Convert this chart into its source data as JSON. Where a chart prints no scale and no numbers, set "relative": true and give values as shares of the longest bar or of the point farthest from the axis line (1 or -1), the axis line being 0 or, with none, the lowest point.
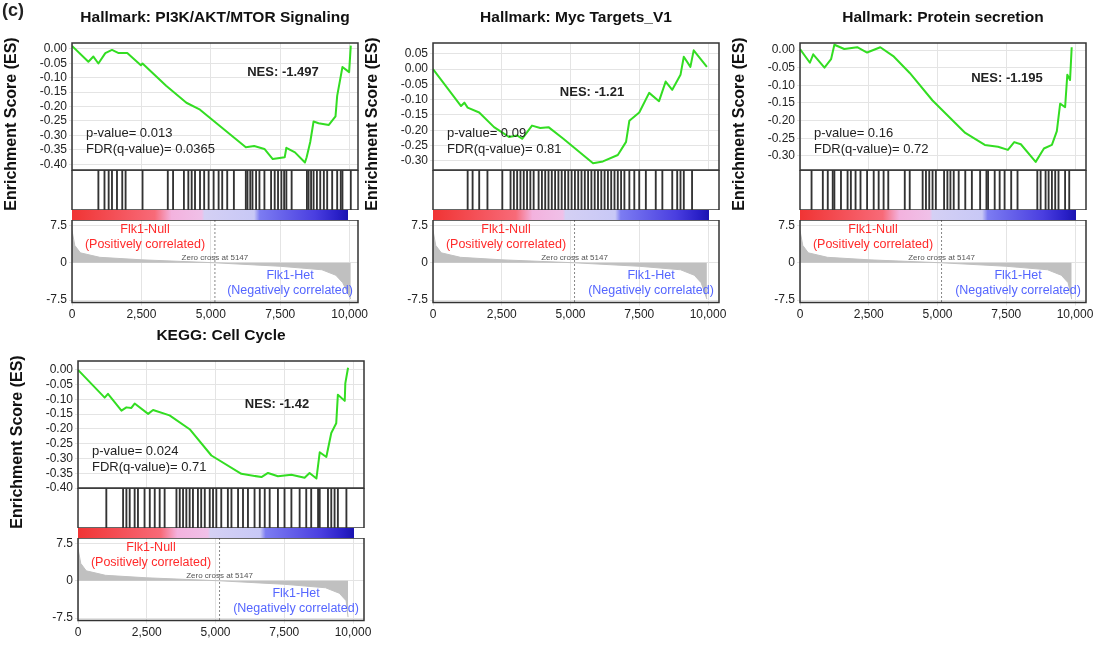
{
  "chart_data": [
    {
      "type": "line",
      "title": "Hallmark: PI3K/AKT/MTOR Signaling",
      "ylabel": "Enrichment Score (ES)",
      "xlim": [
        0,
        10300
      ],
      "xticks": [
        0,
        2500,
        5000,
        7500,
        10000
      ],
      "tick_labels": "y",
      "ylim": [
        -0.42,
        0.02
      ],
      "yticks": [
        {
          "value": 0,
          "label": "0.00"
        },
        {
          "value": -0.05,
          "label": "-0.05"
        },
        {
          "value": -0.1,
          "label": "-0.10"
        },
        {
          "value": -0.15,
          "label": "-0.15"
        },
        {
          "value": -0.2,
          "label": "-0.20"
        },
        {
          "value": -0.25,
          "label": "-0.25"
        },
        {
          "value": -0.3,
          "label": "-0.30"
        },
        {
          "value": -0.35,
          "label": "-0.35"
        },
        {
          "value": -0.4,
          "label": "-0.40"
        }
      ],
      "grid": true,
      "series": [
        {
          "color": "#33dd22",
          "x": [
            0,
            590,
            770,
            950,
            1200,
            1440,
            1680,
            1990,
            2480,
            2540,
            3390,
            4120,
            4610,
            6260,
            6560,
            6930,
            7230,
            7660,
            7720,
            8030,
            8390,
            8450,
            8580,
            8700,
            8880,
            9250,
            9490,
            9550,
            9740,
            9980,
            10040
          ],
          "values": [
            0.01,
            -0.045,
            -0.027,
            -0.051,
            -0.015,
            -0.004,
            -0.015,
            -0.015,
            -0.057,
            -0.051,
            -0.128,
            -0.187,
            -0.211,
            -0.341,
            -0.337,
            -0.347,
            -0.382,
            -0.376,
            -0.343,
            -0.359,
            -0.394,
            -0.376,
            -0.323,
            -0.252,
            -0.258,
            -0.264,
            -0.234,
            -0.163,
            -0.063,
            -0.081,
            0.011
          ]
        }
      ],
      "annotations": [
        "NES: -1.497",
        "p-value= 0.013",
        "FDR(q-value)= 0.0365",
        "(c)"
      ]
    },
    {
      "type": "bar",
      "relative": true,
      "tick_labels": false,
      "xlim": [
        0,
        10300
      ],
      "color": "#333333",
      "x": [
        950,
        1170,
        1320,
        1440,
        1620,
        1810,
        1930,
        2540,
        3450,
        3640,
        4030,
        4190,
        4310,
        4430,
        4610,
        4760,
        4920,
        5100,
        5280,
        5410,
        5590,
        5830,
        6260,
        6320,
        6420,
        6500,
        6630,
        6750,
        6930,
        7170,
        7300,
        7420,
        7540,
        7640,
        7720,
        7910,
        8460,
        8520,
        8610,
        8700,
        8820,
        8940,
        9070,
        9190,
        9370,
        9550,
        9680,
        9740,
        10040
      ],
      "values": [
        1,
        1,
        1,
        1,
        1,
        1,
        1,
        1,
        1,
        1,
        1,
        1,
        1,
        1,
        1,
        1,
        1,
        1,
        1,
        1,
        1,
        1,
        1,
        1,
        1,
        1,
        1,
        1,
        1,
        1,
        1,
        1,
        1,
        1,
        1,
        1,
        1,
        1,
        1,
        1,
        1,
        1,
        1,
        1,
        1,
        1,
        1,
        1,
        1
      ]
    },
    {
      "type": "area",
      "xlim": [
        0,
        10300
      ],
      "xticks": [
        0,
        {
          "value": 2500,
          "label": "2,500"
        },
        {
          "value": 5000,
          "label": "5,000"
        },
        {
          "value": 7500,
          "label": "7,500"
        },
        {
          "value": 10000,
          "label": "10,000"
        }
      ],
      "ylim": [
        -8,
        8.6
      ],
      "yticks": [
        7.5,
        0,
        -7.5
      ],
      "grid": true,
      "series": [
        {
          "color": "#c0c0c0",
          "x": [
            0,
            100,
            300,
            1000,
            2500,
            5147,
            7500,
            9000,
            9500,
            9750,
            10040
          ],
          "values": [
            6.5,
            3.5,
            2,
            1.1,
            0.6,
            0,
            -0.7,
            -1.4,
            -2.5,
            -4,
            -7.3
          ]
        }
      ],
      "ref_lines": [
        {
          "axis": "x",
          "value": 5147,
          "label": "Zero cross at 5147",
          "line_style": "dashed"
        }
      ],
      "annotations": [
        "Flk1-Null\n(Positively correlated)",
        "Flk1-Het\n(Negatively correlated)"
      ]
    },
    {
      "type": "line",
      "title": "Hallmark: Myc Targets_V1",
      "ylabel": "Enrichment Score (ES)",
      "xlim": [
        0,
        10400
      ],
      "xticks": [
        0,
        2500,
        5000,
        7500,
        10000
      ],
      "tick_labels": "y",
      "ylim": [
        -0.33,
        0.085
      ],
      "yticks": [
        {
          "value": 0.05,
          "label": "0.05"
        },
        {
          "value": 0,
          "label": "0.00"
        },
        {
          "value": -0.05,
          "label": "-0.05"
        },
        {
          "value": -0.1,
          "label": "-0.10"
        },
        {
          "value": -0.15,
          "label": "-0.15"
        },
        {
          "value": -0.2,
          "label": "-0.20"
        },
        {
          "value": -0.25,
          "label": "-0.25"
        },
        {
          "value": -0.3,
          "label": "-0.30"
        }
      ],
      "grid": true,
      "series": [
        {
          "color": "#33dd22",
          "x": [
            0,
            1020,
            1140,
            1260,
            1680,
            2220,
            2760,
            3060,
            3240,
            3600,
            3900,
            4200,
            4740,
            5820,
            6180,
            6720,
            7020,
            7140,
            7500,
            7860,
            8220,
            8460,
            8700,
            9000,
            9120,
            9360,
            9480,
            9960
          ],
          "values": [
            0,
            -0.121,
            -0.11,
            -0.126,
            -0.142,
            -0.19,
            -0.222,
            -0.217,
            -0.228,
            -0.185,
            -0.193,
            -0.19,
            -0.228,
            -0.308,
            -0.302,
            -0.281,
            -0.238,
            -0.169,
            -0.142,
            -0.078,
            -0.105,
            -0.041,
            -0.068,
            -0.019,
            0.04,
            0.007,
            0.061,
            0.007
          ]
        }
      ],
      "annotations": [
        "NES: -1.21",
        "p-value= 0.09",
        "FDR(q-value)= 0.81"
      ]
    },
    {
      "type": "bar",
      "relative": true,
      "tick_labels": false,
      "xlim": [
        0,
        10400
      ],
      "color": "#333333",
      "x": [
        1260,
        1440,
        1680,
        1980,
        2520,
        2820,
        2940,
        3060,
        3180,
        3300,
        3420,
        3540,
        3660,
        3840,
        3960,
        4080,
        4200,
        4320,
        4440,
        4560,
        4680,
        4800,
        4920,
        5040,
        5160,
        5280,
        5400,
        5520,
        5640,
        5760,
        5880,
        6000,
        6120,
        6240,
        6360,
        6480,
        6600,
        6720,
        6840,
        6960,
        7140,
        7320,
        7500,
        7740,
        8100,
        8340,
        8700,
        8880,
        9000,
        9120,
        9420
      ],
      "values": [
        1,
        1,
        1,
        1,
        1,
        1,
        1,
        1,
        1,
        1,
        1,
        1,
        1,
        1,
        1,
        1,
        1,
        1,
        1,
        1,
        1,
        1,
        1,
        1,
        1,
        1,
        1,
        1,
        1,
        1,
        1,
        1,
        1,
        1,
        1,
        1,
        1,
        1,
        1,
        1,
        1,
        1,
        1,
        1,
        1,
        1,
        1,
        1,
        1,
        1,
        1
      ]
    },
    {
      "type": "area",
      "xlim": [
        0,
        10400
      ],
      "xticks": [
        0,
        {
          "value": 2500,
          "label": "2,500"
        },
        {
          "value": 5000,
          "label": "5,000"
        },
        {
          "value": 7500,
          "label": "7,500"
        },
        {
          "value": 10000,
          "label": "10,000"
        }
      ],
      "ylim": [
        -8,
        8.6
      ],
      "yticks": [
        7.5,
        0,
        -7.5
      ],
      "grid": true,
      "series": [
        {
          "color": "#c0c0c0",
          "x": [
            0,
            100,
            300,
            1000,
            2500,
            5147,
            7500,
            9000,
            9500,
            9750,
            9960
          ],
          "values": [
            6.5,
            3.5,
            2,
            1.1,
            0.6,
            0,
            -0.7,
            -1.4,
            -2.5,
            -4,
            -7.3
          ]
        }
      ],
      "ref_lines": [
        {
          "axis": "x",
          "value": 5147,
          "label": "Zero cross at 5147",
          "line_style": "dashed"
        }
      ],
      "annotations": [
        "Flk1-Null\n(Positively correlated)",
        "Flk1-Het\n(Negatively correlated)"
      ]
    },
    {
      "type": "line",
      "title": "Hallmark: Protein secretion",
      "ylabel": "Enrichment Score (ES)",
      "xlim": [
        0,
        10400
      ],
      "xticks": [
        0,
        2500,
        5000,
        7500,
        10000
      ],
      "tick_labels": "y",
      "ylim": [
        -0.34,
        0.02
      ],
      "yticks": [
        {
          "value": 0,
          "label": "0.00"
        },
        {
          "value": -0.05,
          "label": "-0.05"
        },
        {
          "value": -0.1,
          "label": "-0.10"
        },
        {
          "value": -0.15,
          "label": "-0.15"
        },
        {
          "value": -0.2,
          "label": "-0.20"
        },
        {
          "value": -0.25,
          "label": "-0.25"
        },
        {
          "value": -0.3,
          "label": "-0.30"
        }
      ],
      "grid": true,
      "series": [
        {
          "color": "#33dd22",
          "x": [
            0,
            360,
            480,
            890,
            1130,
            1250,
            1610,
            2080,
            2440,
            2920,
            3390,
            3990,
            4820,
            6010,
            6720,
            7200,
            7560,
            7790,
            8030,
            8570,
            8870,
            9160,
            9340,
            9460,
            9640,
            9720,
            9820,
            9880
          ],
          "values": [
            0.003,
            -0.036,
            -0.012,
            -0.05,
            -0.026,
            0.015,
            0.003,
            0.008,
            -0.007,
            0.008,
            -0.017,
            -0.065,
            -0.143,
            -0.235,
            -0.269,
            -0.274,
            -0.283,
            -0.261,
            -0.267,
            -0.317,
            -0.279,
            -0.269,
            -0.23,
            -0.152,
            -0.162,
            -0.07,
            -0.085,
            0.008
          ]
        }
      ],
      "annotations": [
        "NES: -1.195",
        "p-value= 0.16",
        "FDR(q-value)= 0.72"
      ]
    },
    {
      "type": "bar",
      "relative": true,
      "tick_labels": false,
      "xlim": [
        0,
        10400
      ],
      "color": "#333333",
      "x": [
        420,
        830,
        1010,
        1190,
        1250,
        1490,
        1730,
        1850,
        2020,
        2200,
        2440,
        2680,
        2860,
        3040,
        3210,
        3810,
        3990,
        4460,
        4580,
        4700,
        4820,
        4940,
        5240,
        5360,
        5470,
        5590,
        5770,
        6010,
        6250,
        6550,
        6780,
        6840,
        7080,
        7260,
        7440,
        7680,
        7910,
        8630,
        8750,
        8930,
        9040,
        9160,
        9280,
        9400,
        9640,
        9790
      ],
      "values": [
        1,
        1,
        1,
        1,
        1,
        1,
        1,
        1,
        1,
        1,
        1,
        1,
        1,
        1,
        1,
        1,
        1,
        1,
        1,
        1,
        1,
        1,
        1,
        1,
        1,
        1,
        1,
        1,
        1,
        1,
        1,
        1,
        1,
        1,
        1,
        1,
        1,
        1,
        1,
        1,
        1,
        1,
        1,
        1,
        1,
        1
      ]
    },
    {
      "type": "area",
      "xlim": [
        0,
        10400
      ],
      "xticks": [
        0,
        {
          "value": 2500,
          "label": "2,500"
        },
        {
          "value": 5000,
          "label": "5,000"
        },
        {
          "value": 7500,
          "label": "7,500"
        },
        {
          "value": 10000,
          "label": "10,000"
        }
      ],
      "ylim": [
        -8,
        8.6
      ],
      "yticks": [
        7.5,
        0,
        -7.5
      ],
      "grid": true,
      "series": [
        {
          "color": "#c0c0c0",
          "x": [
            0,
            100,
            300,
            1000,
            2500,
            5147,
            7500,
            9000,
            9500,
            9750,
            9880
          ],
          "values": [
            6.5,
            3.5,
            2,
            1.1,
            0.6,
            0,
            -0.7,
            -1.4,
            -2.5,
            -4,
            -7.3
          ]
        }
      ],
      "ref_lines": [
        {
          "axis": "x",
          "value": 5147,
          "label": "Zero cross at 5147",
          "line_style": "dashed"
        }
      ],
      "annotations": [
        "Flk1-Null\n(Positively correlated)",
        "Flk1-Het\n(Negatively correlated)"
      ]
    },
    {
      "type": "line",
      "title": "KEGG: Cell Cycle",
      "ylabel": "Enrichment Score (ES)",
      "xlim": [
        0,
        10400
      ],
      "xticks": [
        0,
        2500,
        5000,
        7500,
        10000
      ],
      "tick_labels": "y",
      "ylim": [
        -0.4,
        0.03
      ],
      "yticks": [
        {
          "value": 0,
          "label": "0.00"
        },
        {
          "value": -0.05,
          "label": "-0.05"
        },
        {
          "value": -0.1,
          "label": "-0.10"
        },
        {
          "value": -0.15,
          "label": "-0.15"
        },
        {
          "value": -0.2,
          "label": "-0.20"
        },
        {
          "value": -0.25,
          "label": "-0.25"
        },
        {
          "value": -0.3,
          "label": "-0.30"
        },
        {
          "value": -0.35,
          "label": "-0.35"
        },
        {
          "value": -0.4,
          "label": "-0.40"
        }
      ],
      "grid": true,
      "series": [
        {
          "color": "#33dd22",
          "x": [
            0,
            970,
            1090,
            1580,
            1760,
            1940,
            2060,
            2550,
            2730,
            3330,
            4060,
            4850,
            5940,
            6670,
            6910,
            7270,
            7760,
            8240,
            8420,
            8670,
            8790,
            9030,
            9210,
            9390,
            9450,
            9700,
            9720,
            9820
          ],
          "values": [
            0,
            -0.094,
            -0.081,
            -0.138,
            -0.127,
            -0.129,
            -0.114,
            -0.149,
            -0.136,
            -0.154,
            -0.201,
            -0.29,
            -0.352,
            -0.363,
            -0.349,
            -0.36,
            -0.355,
            -0.365,
            -0.349,
            -0.368,
            -0.279,
            -0.295,
            -0.214,
            -0.181,
            -0.084,
            -0.105,
            -0.046,
            0.007
          ]
        }
      ],
      "annotations": [
        "NES: -1.42",
        "p-value= 0.024",
        "FDR(q-value)= 0.71"
      ]
    },
    {
      "type": "bar",
      "relative": true,
      "tick_labels": false,
      "xlim": [
        0,
        10400
      ],
      "color": "#333333",
      "x": [
        1030,
        1640,
        1760,
        1880,
        2060,
        2180,
        2420,
        2610,
        2790,
        2970,
        3150,
        3580,
        3700,
        3820,
        3940,
        4060,
        4180,
        4360,
        4480,
        4610,
        4790,
        4910,
        5030,
        5210,
        5450,
        5580,
        5820,
        6000,
        6180,
        6420,
        6610,
        6790,
        6970,
        7270,
        7510,
        7760,
        8060,
        8300,
        8480,
        8730,
        8790,
        9090,
        9210,
        9330,
        9450,
        9760
      ],
      "values": [
        1,
        1,
        1,
        1,
        1,
        1,
        1,
        1,
        1,
        1,
        1,
        1,
        1,
        1,
        1,
        1,
        1,
        1,
        1,
        1,
        1,
        1,
        1,
        1,
        1,
        1,
        1,
        1,
        1,
        1,
        1,
        1,
        1,
        1,
        1,
        1,
        1,
        1,
        1,
        1,
        1,
        1,
        1,
        1,
        1,
        1
      ]
    },
    {
      "type": "area",
      "xlim": [
        0,
        10400
      ],
      "xticks": [
        0,
        {
          "value": 2500,
          "label": "2,500"
        },
        {
          "value": 5000,
          "label": "5,000"
        },
        {
          "value": 7500,
          "label": "7,500"
        },
        {
          "value": 10000,
          "label": "10,000"
        }
      ],
      "ylim": [
        -8,
        8.6
      ],
      "yticks": [
        7.5,
        0,
        -7.5
      ],
      "grid": true,
      "series": [
        {
          "color": "#c0c0c0",
          "x": [
            0,
            100,
            300,
            1000,
            2500,
            5147,
            7500,
            9000,
            9500,
            9750,
            9820
          ],
          "values": [
            6.5,
            3.5,
            2,
            1.1,
            0.6,
            0,
            -0.7,
            -1.4,
            -2.5,
            -4,
            -7.3
          ]
        }
      ],
      "ref_lines": [
        {
          "axis": "x",
          "value": 5147,
          "label": "Zero cross at 5147",
          "line_style": "dashed"
        }
      ],
      "annotations": [
        "Flk1-Null\n(Positively correlated)",
        "Flk1-Het\n(Negatively correlated)"
      ]
    }
  ]
}
